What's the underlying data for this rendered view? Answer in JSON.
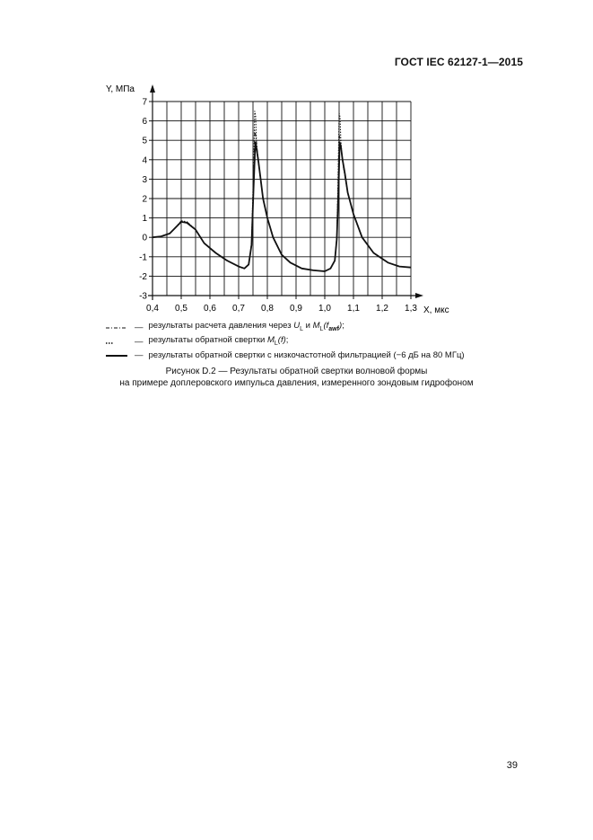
{
  "header": {
    "standard": "ГОСТ IEC 62127-1—2015"
  },
  "chart_data": {
    "type": "line",
    "title": "",
    "xlabel": "X, мкс",
    "ylabel": "Y, МПа",
    "xlim": [
      0.4,
      1.3
    ],
    "ylim": [
      -3,
      7
    ],
    "x_tick_labels": [
      "0,4",
      "0,5",
      "0,6",
      "0,7",
      "0,8",
      "0,9",
      "1,0",
      "1,1",
      "1,2",
      "1,3"
    ],
    "y_tick_labels": [
      "-3",
      "-2",
      "-1",
      "0",
      "1",
      "2",
      "3",
      "4",
      "5",
      "6",
      "7"
    ],
    "grid": true,
    "legend_placement": "below",
    "series": [
      {
        "style": "dash-dot",
        "x": [
          0.4,
          0.43,
          0.46,
          0.48,
          0.5,
          0.52,
          0.55,
          0.58,
          0.62,
          0.66,
          0.7,
          0.72,
          0.735,
          0.745,
          0.752,
          0.756,
          0.76,
          0.765,
          0.772,
          0.785,
          0.8,
          0.82,
          0.85,
          0.88,
          0.92,
          0.96,
          1.0,
          1.02,
          1.035,
          1.042,
          1.047,
          1.05,
          1.053,
          1.058,
          1.065,
          1.08,
          1.1,
          1.13,
          1.17,
          1.22,
          1.26,
          1.3
        ],
        "y": [
          0.0,
          0.05,
          0.2,
          0.5,
          0.85,
          0.8,
          0.4,
          -0.3,
          -0.8,
          -1.2,
          -1.5,
          -1.6,
          -1.4,
          -0.3,
          3.0,
          5.5,
          5.2,
          4.5,
          3.5,
          2.0,
          1.0,
          0.0,
          -0.9,
          -1.3,
          -1.6,
          -1.7,
          -1.75,
          -1.6,
          -1.2,
          0.0,
          3.0,
          5.3,
          5.1,
          4.4,
          3.6,
          2.3,
          1.2,
          0.0,
          -0.8,
          -1.3,
          -1.5,
          -1.55
        ]
      },
      {
        "style": "dotted",
        "x": [
          0.4,
          0.43,
          0.46,
          0.48,
          0.5,
          0.52,
          0.55,
          0.58,
          0.62,
          0.66,
          0.7,
          0.72,
          0.735,
          0.745,
          0.752,
          0.756,
          0.759,
          0.762,
          0.766,
          0.772,
          0.785,
          0.8,
          0.82,
          0.85,
          0.88,
          0.92,
          0.96,
          1.0,
          1.02,
          1.035,
          1.042,
          1.047,
          1.05,
          1.053,
          1.056,
          1.06,
          1.066,
          1.08,
          1.1,
          1.13,
          1.17,
          1.22,
          1.26,
          1.3
        ],
        "y": [
          0.0,
          0.05,
          0.2,
          0.5,
          0.85,
          0.8,
          0.4,
          -0.3,
          -0.8,
          -1.2,
          -1.5,
          -1.6,
          -1.4,
          -0.3,
          3.5,
          6.5,
          6.3,
          5.0,
          4.2,
          3.5,
          2.0,
          1.0,
          0.0,
          -0.9,
          -1.3,
          -1.6,
          -1.7,
          -1.75,
          -1.6,
          -1.2,
          0.0,
          3.5,
          6.4,
          6.2,
          5.0,
          4.2,
          3.6,
          2.3,
          1.2,
          0.0,
          -0.8,
          -1.3,
          -1.5,
          -1.55
        ]
      },
      {
        "style": "solid",
        "x": [
          0.4,
          0.43,
          0.46,
          0.48,
          0.5,
          0.52,
          0.55,
          0.58,
          0.62,
          0.66,
          0.7,
          0.72,
          0.735,
          0.745,
          0.752,
          0.758,
          0.762,
          0.768,
          0.775,
          0.785,
          0.8,
          0.82,
          0.85,
          0.88,
          0.92,
          0.96,
          1.0,
          1.02,
          1.035,
          1.042,
          1.048,
          1.052,
          1.056,
          1.062,
          1.07,
          1.08,
          1.1,
          1.13,
          1.17,
          1.22,
          1.26,
          1.3
        ],
        "y": [
          0.0,
          0.05,
          0.2,
          0.5,
          0.8,
          0.75,
          0.4,
          -0.3,
          -0.8,
          -1.2,
          -1.5,
          -1.6,
          -1.4,
          -0.4,
          2.5,
          4.9,
          4.6,
          4.0,
          3.2,
          2.0,
          1.0,
          0.0,
          -0.9,
          -1.3,
          -1.6,
          -1.7,
          -1.75,
          -1.6,
          -1.2,
          -0.1,
          2.5,
          4.9,
          4.7,
          4.0,
          3.3,
          2.3,
          1.2,
          0.0,
          -0.8,
          -1.3,
          -1.5,
          -1.55
        ]
      }
    ]
  },
  "legend": {
    "items": [
      {
        "sample": "dash-dot",
        "dash": "—",
        "pre": "результаты расчета давления через ",
        "mid": " и ",
        "post": ";",
        "v1": "U",
        "s1": "L",
        "v2": "M",
        "s2": "L",
        "v3": "(f",
        "s3": "awf",
        "v4": ")"
      },
      {
        "sample": "dotted",
        "dash": "—",
        "pre": "результаты обратной свертки ",
        "v1": "M",
        "s1": "L",
        "v2": "(f)",
        "post": ";"
      },
      {
        "sample": "solid",
        "dash": "—",
        "text": "результаты обратной свертки с низкочастотной фильтрацией (−6 дБ на 80 МГц)"
      }
    ]
  },
  "caption": {
    "line1": "Рисунок D.2 — Результаты обратной свертки волновой формы",
    "line2": "на примере доплеровского импульса давления, измеренного зондовым гидрофоном"
  },
  "page": {
    "number": "39"
  }
}
